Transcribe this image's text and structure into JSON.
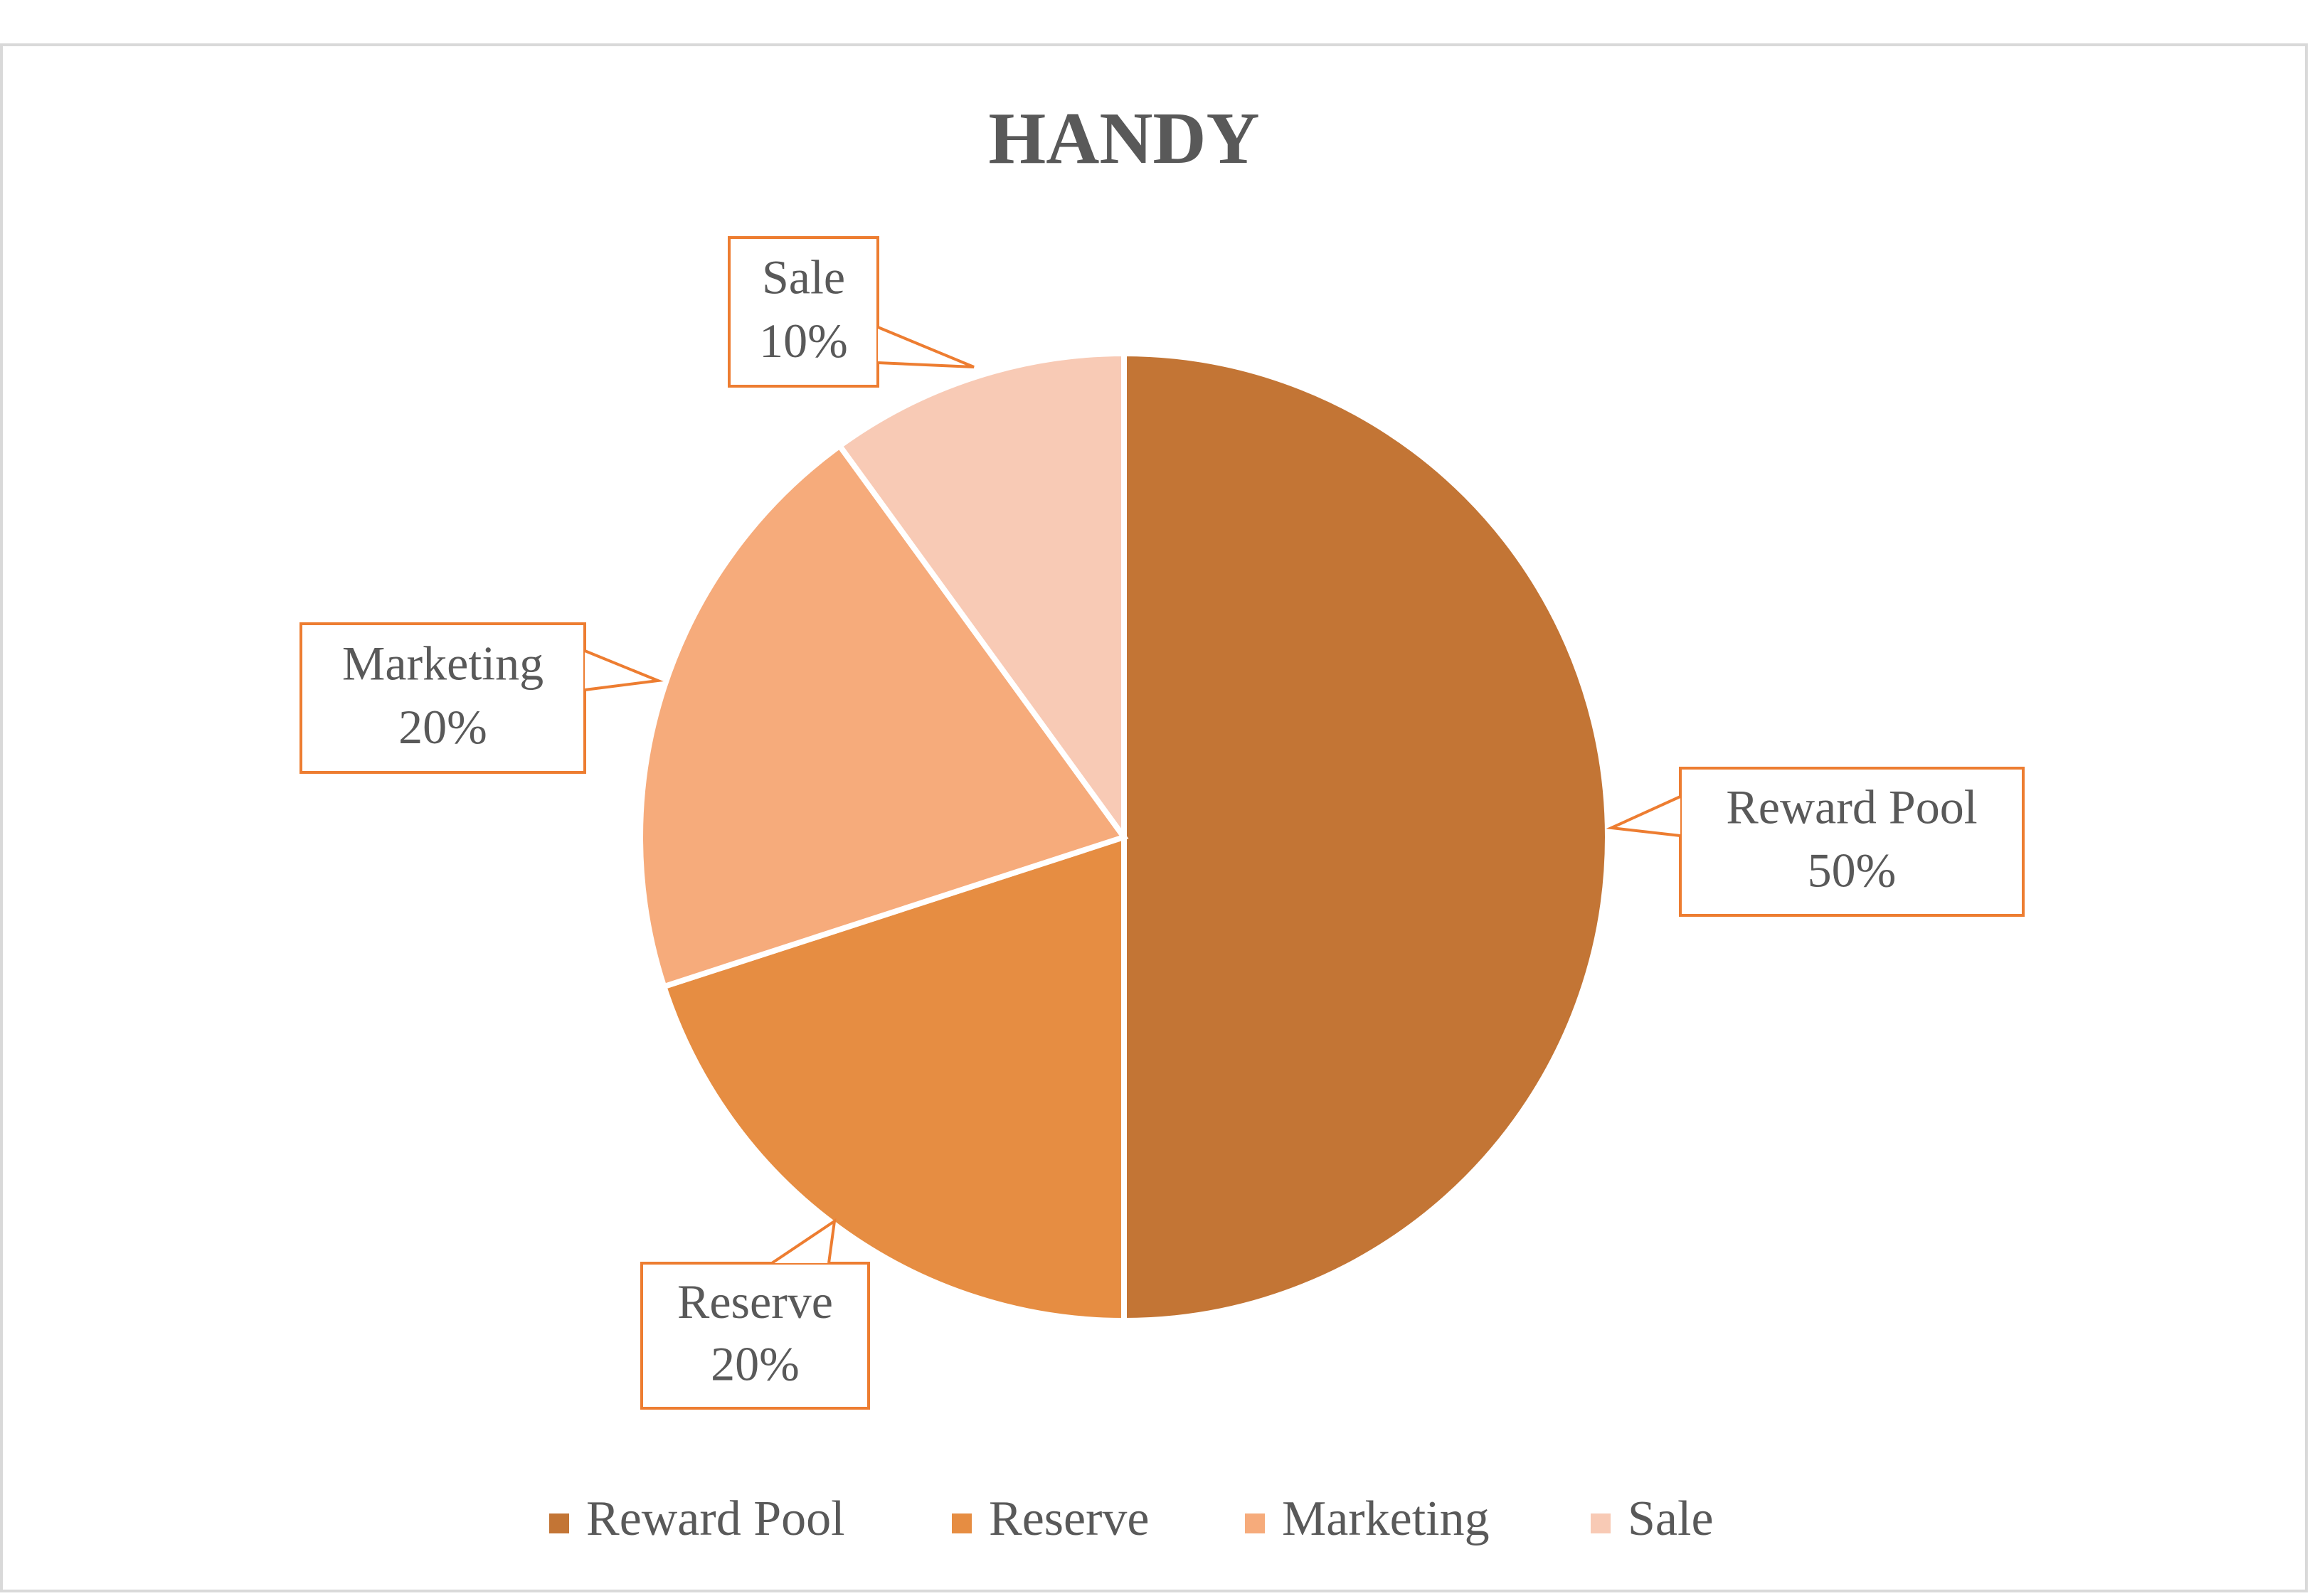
{
  "chart_data": {
    "type": "pie",
    "title": "HANDY",
    "categories": [
      "Reward Pool",
      "Reserve",
      "Marketing",
      "Sale"
    ],
    "values": [
      50,
      20,
      20,
      10
    ],
    "value_labels": [
      "50%",
      "20%",
      "20%",
      "10%"
    ],
    "colors": [
      "#c37535",
      "#e68d42",
      "#f6ab7b",
      "#f8cab5"
    ],
    "legend": "bottom"
  }
}
